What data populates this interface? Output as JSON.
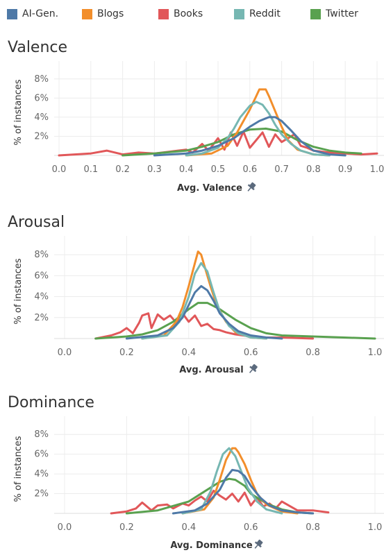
{
  "legend": [
    {
      "name": "AI-Gen.",
      "color": "#4e79a7"
    },
    {
      "name": "Blogs",
      "color": "#f28e2b"
    },
    {
      "name": "Books",
      "color": "#e15759"
    },
    {
      "name": "Reddit",
      "color": "#76b7b2"
    },
    {
      "name": "Twitter",
      "color": "#59a14f"
    }
  ],
  "icons": {
    "pin": "pin-icon"
  },
  "chart_data": [
    {
      "type": "line",
      "title": "Valence",
      "xlabel": "Avg. Valence",
      "ylabel": "% of instances",
      "xlim": [
        0.0,
        1.0
      ],
      "ylim": [
        0,
        9
      ],
      "xticks": [
        "0.0",
        "0.1",
        "0.2",
        "0.3",
        "0.4",
        "0.5",
        "0.6",
        "0.7",
        "0.8",
        "0.9",
        "1.0"
      ],
      "yticks": [
        "2%",
        "4%",
        "6%",
        "8%"
      ],
      "series": [
        {
          "name": "AI-Gen.",
          "x": [
            0.3,
            0.4,
            0.45,
            0.5,
            0.55,
            0.6,
            0.63,
            0.66,
            0.68,
            0.7,
            0.73,
            0.76,
            0.8,
            0.85,
            0.9
          ],
          "y": [
            0,
            0.2,
            0.5,
            1.0,
            1.8,
            3.0,
            3.6,
            4.0,
            4.0,
            3.6,
            2.6,
            1.5,
            0.5,
            0.1,
            0
          ]
        },
        {
          "name": "Blogs",
          "x": [
            0.4,
            0.48,
            0.53,
            0.56,
            0.58,
            0.6,
            0.62,
            0.63,
            0.65,
            0.66,
            0.68,
            0.7,
            0.72,
            0.75,
            0.8,
            0.85
          ],
          "y": [
            0,
            0.2,
            1.0,
            2.4,
            3.6,
            4.8,
            6.2,
            6.9,
            6.9,
            6.2,
            4.6,
            3.0,
            1.6,
            0.6,
            0.1,
            0
          ]
        },
        {
          "name": "Books",
          "x": [
            0.0,
            0.05,
            0.1,
            0.15,
            0.2,
            0.25,
            0.3,
            0.35,
            0.4,
            0.42,
            0.45,
            0.47,
            0.5,
            0.52,
            0.54,
            0.56,
            0.58,
            0.6,
            0.62,
            0.64,
            0.66,
            0.68,
            0.7,
            0.72,
            0.74,
            0.76,
            0.78,
            0.8,
            0.85,
            0.9,
            0.95,
            1.0
          ],
          "y": [
            0,
            0.1,
            0.2,
            0.5,
            0.1,
            0.3,
            0.2,
            0.4,
            0.6,
            0.3,
            1.2,
            0.5,
            1.8,
            0.6,
            2.4,
            1.0,
            2.5,
            0.8,
            1.6,
            2.4,
            0.9,
            2.2,
            1.4,
            1.8,
            2.2,
            1.0,
            0.8,
            0.5,
            0.3,
            0.2,
            0.1,
            0.2
          ]
        },
        {
          "name": "Reddit",
          "x": [
            0.4,
            0.45,
            0.5,
            0.53,
            0.55,
            0.57,
            0.6,
            0.62,
            0.64,
            0.66,
            0.68,
            0.7,
            0.73,
            0.76,
            0.8,
            0.85
          ],
          "y": [
            0,
            0.2,
            0.8,
            1.8,
            2.8,
            4.0,
            5.2,
            5.6,
            5.3,
            4.4,
            3.2,
            2.2,
            1.2,
            0.5,
            0.1,
            0
          ]
        },
        {
          "name": "Twitter",
          "x": [
            0.2,
            0.3,
            0.4,
            0.45,
            0.5,
            0.55,
            0.6,
            0.65,
            0.7,
            0.75,
            0.8,
            0.85,
            0.9,
            0.95
          ],
          "y": [
            0,
            0.2,
            0.5,
            0.9,
            1.4,
            2.2,
            2.7,
            2.8,
            2.5,
            1.6,
            0.9,
            0.5,
            0.3,
            0.2
          ]
        }
      ]
    },
    {
      "type": "line",
      "title": "Arousal",
      "xlabel": "Avg. Arousal",
      "ylabel": "% of instances",
      "xlim": [
        0.0,
        1.0
      ],
      "ylim": [
        0,
        9
      ],
      "xticks": [
        "0.0",
        "0.2",
        "0.4",
        "0.6",
        "0.8",
        "1.0"
      ],
      "yticks": [
        "2%",
        "4%",
        "6%",
        "8%"
      ],
      "series": [
        {
          "name": "AI-Gen.",
          "x": [
            0.2,
            0.3,
            0.35,
            0.38,
            0.4,
            0.42,
            0.44,
            0.46,
            0.48,
            0.5,
            0.53,
            0.56,
            0.6,
            0.65,
            0.7
          ],
          "y": [
            0,
            0.3,
            1.0,
            2.0,
            3.2,
            4.4,
            5.0,
            4.6,
            3.6,
            2.4,
            1.4,
            0.7,
            0.3,
            0.1,
            0
          ]
        },
        {
          "name": "Blogs",
          "x": [
            0.25,
            0.32,
            0.36,
            0.38,
            0.4,
            0.42,
            0.43,
            0.44,
            0.45,
            0.47,
            0.49,
            0.52,
            0.55,
            0.6,
            0.65
          ],
          "y": [
            0,
            0.3,
            1.6,
            3.0,
            5.0,
            7.2,
            8.3,
            8.0,
            7.0,
            5.0,
            3.2,
            1.6,
            0.6,
            0.1,
            0
          ]
        },
        {
          "name": "Books",
          "x": [
            0.1,
            0.15,
            0.18,
            0.2,
            0.22,
            0.24,
            0.25,
            0.27,
            0.28,
            0.3,
            0.32,
            0.34,
            0.36,
            0.38,
            0.4,
            0.42,
            0.44,
            0.46,
            0.48,
            0.5,
            0.52,
            0.55,
            0.6,
            0.65,
            0.7,
            0.8
          ],
          "y": [
            0,
            0.3,
            0.6,
            1.0,
            0.5,
            1.5,
            2.2,
            2.4,
            1.0,
            2.3,
            1.8,
            2.2,
            1.5,
            2.4,
            1.6,
            2.2,
            1.2,
            1.4,
            0.9,
            0.8,
            0.6,
            0.4,
            0.2,
            0.1,
            0.1,
            0
          ]
        },
        {
          "name": "Reddit",
          "x": [
            0.25,
            0.33,
            0.37,
            0.4,
            0.42,
            0.44,
            0.46,
            0.48,
            0.5,
            0.53,
            0.56,
            0.6,
            0.65
          ],
          "y": [
            0,
            0.3,
            1.6,
            4.0,
            6.2,
            7.2,
            6.4,
            4.4,
            2.6,
            1.2,
            0.5,
            0.1,
            0
          ]
        },
        {
          "name": "Twitter",
          "x": [
            0.1,
            0.2,
            0.25,
            0.3,
            0.35,
            0.4,
            0.43,
            0.46,
            0.5,
            0.55,
            0.6,
            0.65,
            0.7,
            0.8,
            0.9,
            1.0
          ],
          "y": [
            0,
            0.2,
            0.4,
            0.8,
            1.6,
            2.8,
            3.4,
            3.4,
            2.8,
            1.8,
            1.0,
            0.5,
            0.3,
            0.2,
            0.1,
            0
          ]
        }
      ]
    },
    {
      "type": "line",
      "title": "Dominance",
      "xlabel": "Avg. Dominance",
      "ylabel": "% of instances",
      "xlim": [
        0.0,
        1.0
      ],
      "ylim": [
        0,
        9
      ],
      "xticks": [
        "0.0",
        "0.2",
        "0.4",
        "0.6",
        "0.8",
        "1.0"
      ],
      "yticks": [
        "2%",
        "4%",
        "6%",
        "8%"
      ],
      "series": [
        {
          "name": "AI-Gen.",
          "x": [
            0.35,
            0.42,
            0.46,
            0.5,
            0.52,
            0.54,
            0.56,
            0.58,
            0.6,
            0.63,
            0.66,
            0.7,
            0.75,
            0.8
          ],
          "y": [
            0,
            0.3,
            1.0,
            2.4,
            3.6,
            4.4,
            4.3,
            3.8,
            2.8,
            1.6,
            0.8,
            0.3,
            0.1,
            0
          ]
        },
        {
          "name": "Blogs",
          "x": [
            0.38,
            0.45,
            0.48,
            0.5,
            0.52,
            0.54,
            0.55,
            0.56,
            0.58,
            0.6,
            0.62,
            0.65,
            0.7,
            0.75
          ],
          "y": [
            0,
            0.4,
            1.6,
            3.4,
            5.4,
            6.6,
            6.6,
            6.2,
            5.0,
            3.4,
            2.0,
            0.9,
            0.2,
            0
          ]
        },
        {
          "name": "Books",
          "x": [
            0.15,
            0.2,
            0.23,
            0.25,
            0.28,
            0.3,
            0.33,
            0.35,
            0.38,
            0.4,
            0.42,
            0.44,
            0.46,
            0.48,
            0.5,
            0.52,
            0.54,
            0.56,
            0.58,
            0.6,
            0.62,
            0.64,
            0.66,
            0.68,
            0.7,
            0.75,
            0.8,
            0.85
          ],
          "y": [
            0,
            0.2,
            0.5,
            1.1,
            0.3,
            0.8,
            0.9,
            0.5,
            1.0,
            0.8,
            1.3,
            1.7,
            1.2,
            2.3,
            1.8,
            1.4,
            2.0,
            1.2,
            2.1,
            0.8,
            1.6,
            0.7,
            1.0,
            0.5,
            1.2,
            0.3,
            0.3,
            0.1
          ]
        },
        {
          "name": "Reddit",
          "x": [
            0.38,
            0.44,
            0.47,
            0.49,
            0.51,
            0.53,
            0.55,
            0.57,
            0.59,
            0.62,
            0.65,
            0.7
          ],
          "y": [
            0,
            0.4,
            2.2,
            4.2,
            6.0,
            6.6,
            5.8,
            4.2,
            2.6,
            1.2,
            0.4,
            0
          ]
        },
        {
          "name": "Twitter",
          "x": [
            0.2,
            0.3,
            0.4,
            0.45,
            0.5,
            0.53,
            0.55,
            0.58,
            0.6,
            0.65,
            0.7,
            0.75,
            0.8
          ],
          "y": [
            0,
            0.3,
            1.2,
            2.2,
            3.2,
            3.5,
            3.4,
            2.8,
            2.0,
            1.0,
            0.4,
            0.1,
            0
          ]
        }
      ]
    }
  ]
}
